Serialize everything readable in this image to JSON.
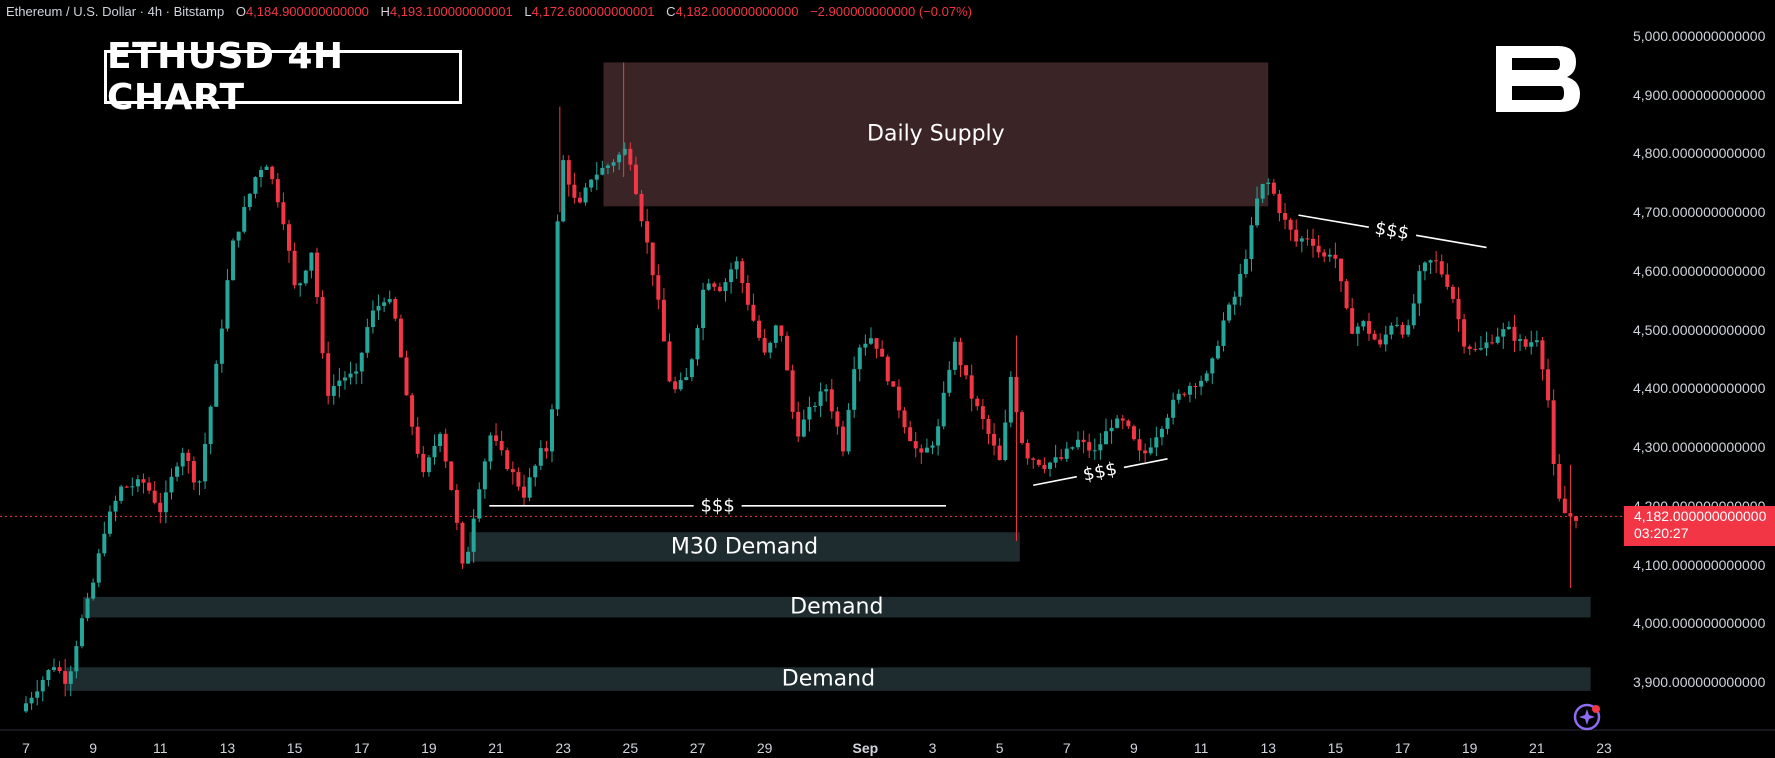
{
  "header": {
    "symbol": "Ethereum / U.S. Dollar · 4h · Bitstamp",
    "open_label": "O",
    "open": "4,184.900000000000",
    "high_label": "H",
    "high": "4,193.100000000001",
    "low_label": "L",
    "low": "4,172.600000000001",
    "close_label": "C",
    "close": "4,182.000000000000",
    "change": "−2.900000000000 (−0.07%)"
  },
  "title": "ETHUSD 4H CHART",
  "logo_icon": "b-logo-icon",
  "zones": [
    {
      "label": "Daily Supply"
    },
    {
      "label": "M30 Demand"
    },
    {
      "label": "Demand"
    },
    {
      "label": "Demand"
    }
  ],
  "liquidity": [
    {
      "label": "$$$"
    },
    {
      "label": "$$$"
    },
    {
      "label": "$$$"
    }
  ],
  "price_tag": {
    "price": "4,182.000000000000",
    "countdown": "03:20:27"
  },
  "colors": {
    "up": "#26a69a",
    "down": "#f23645",
    "supply": "#3a2425",
    "demand": "#1f2c2f"
  },
  "chart_data": {
    "type": "candlestick",
    "title": "ETHUSD 4H CHART",
    "ylim": [
      3850,
      5050
    ],
    "y_ticks": [
      "5,000.000000000000",
      "4,900.000000000000",
      "4,800.000000000000",
      "4,700.000000000000",
      "4,600.000000000000",
      "4,500.000000000000",
      "4,400.000000000000",
      "4,300.000000000000",
      "4,200.000000000000",
      "4,100.000000000000",
      "4,000.000000000000",
      "3,900.000000000000"
    ],
    "y_tick_values": [
      5000,
      4900,
      4800,
      4700,
      4600,
      4500,
      4400,
      4300,
      4200,
      4100,
      4000,
      3900
    ],
    "x_ticks": [
      "7",
      "9",
      "11",
      "13",
      "15",
      "17",
      "19",
      "21",
      "23",
      "25",
      "27",
      "29",
      "Sep",
      "3",
      "5",
      "7",
      "9",
      "11",
      "13",
      "15",
      "17",
      "19",
      "21",
      "23"
    ],
    "x_tick_days": [
      7,
      9,
      11,
      13,
      15,
      17,
      19,
      21,
      23,
      25,
      27,
      29,
      32,
      34,
      36,
      38,
      40,
      42,
      44,
      46,
      48,
      50,
      52,
      54
    ],
    "x_range_days": [
      7,
      54
    ],
    "zones": [
      {
        "name": "Daily Supply",
        "x0": 24.2,
        "x1": 44.0,
        "y_low": 4710,
        "y_high": 4955
      },
      {
        "name": "M30 Demand",
        "x0": 20.2,
        "x1": 36.6,
        "y_low": 4105,
        "y_high": 4155
      },
      {
        "name": "Demand",
        "x0": 8.7,
        "x1": 53.6,
        "y_low": 4010,
        "y_high": 4045
      },
      {
        "name": "Demand",
        "x0": 8.2,
        "x1": 53.6,
        "y_low": 3885,
        "y_high": 3925
      }
    ],
    "liquidity_lines": [
      {
        "label": "$$$",
        "x0": 20.8,
        "y0": 4200,
        "x1": 34.4,
        "y1": 4200
      },
      {
        "label": "$$$",
        "x0": 37.0,
        "y0": 4235,
        "x1": 41.0,
        "y1": 4280
      },
      {
        "label": "$$$",
        "x0": 44.9,
        "y0": 4695,
        "x1": 50.5,
        "y1": 4640
      }
    ],
    "current_price": 4182,
    "anchors": [
      [
        7.0,
        3850
      ],
      [
        7.6,
        3900
      ],
      [
        8.0,
        3930
      ],
      [
        8.4,
        3900
      ],
      [
        8.8,
        4000
      ],
      [
        9.1,
        4050
      ],
      [
        9.5,
        4160
      ],
      [
        10.0,
        4230
      ],
      [
        10.7,
        4240
      ],
      [
        11.2,
        4190
      ],
      [
        11.8,
        4300
      ],
      [
        12.3,
        4230
      ],
      [
        12.8,
        4420
      ],
      [
        13.3,
        4640
      ],
      [
        14.0,
        4760
      ],
      [
        14.3,
        4790
      ],
      [
        14.8,
        4700
      ],
      [
        15.2,
        4560
      ],
      [
        15.7,
        4640
      ],
      [
        16.1,
        4390
      ],
      [
        16.6,
        4420
      ],
      [
        17.0,
        4420
      ],
      [
        17.4,
        4520
      ],
      [
        17.9,
        4560
      ],
      [
        18.2,
        4510
      ],
      [
        18.5,
        4380
      ],
      [
        19.0,
        4250
      ],
      [
        19.5,
        4330
      ],
      [
        19.9,
        4210
      ],
      [
        20.2,
        4080
      ],
      [
        20.6,
        4220
      ],
      [
        21.0,
        4320
      ],
      [
        21.5,
        4270
      ],
      [
        22.0,
        4220
      ],
      [
        22.5,
        4290
      ],
      [
        22.8,
        4300
      ],
      [
        22.95,
        4620
      ],
      [
        23.1,
        4800
      ],
      [
        23.6,
        4700
      ],
      [
        24.0,
        4760
      ],
      [
        24.5,
        4780
      ],
      [
        25.1,
        4810
      ],
      [
        25.4,
        4720
      ],
      [
        25.9,
        4580
      ],
      [
        26.4,
        4390
      ],
      [
        26.9,
        4420
      ],
      [
        27.4,
        4590
      ],
      [
        27.9,
        4570
      ],
      [
        28.3,
        4620
      ],
      [
        28.7,
        4540
      ],
      [
        29.2,
        4450
      ],
      [
        29.6,
        4520
      ],
      [
        30.1,
        4320
      ],
      [
        30.6,
        4370
      ],
      [
        31.0,
        4400
      ],
      [
        31.5,
        4300
      ],
      [
        31.9,
        4470
      ],
      [
        32.4,
        4490
      ],
      [
        32.9,
        4410
      ],
      [
        33.4,
        4330
      ],
      [
        33.8,
        4280
      ],
      [
        34.3,
        4320
      ],
      [
        34.8,
        4480
      ],
      [
        35.3,
        4390
      ],
      [
        35.7,
        4340
      ],
      [
        36.2,
        4270
      ],
      [
        36.5,
        4420
      ],
      [
        36.9,
        4290
      ],
      [
        37.5,
        4270
      ],
      [
        38.0,
        4280
      ],
      [
        38.5,
        4310
      ],
      [
        39.0,
        4290
      ],
      [
        39.5,
        4340
      ],
      [
        39.9,
        4340
      ],
      [
        40.4,
        4280
      ],
      [
        40.9,
        4330
      ],
      [
        41.4,
        4380
      ],
      [
        41.9,
        4410
      ],
      [
        42.4,
        4420
      ],
      [
        42.8,
        4510
      ],
      [
        43.2,
        4560
      ],
      [
        43.6,
        4650
      ],
      [
        43.9,
        4740
      ],
      [
        44.2,
        4750
      ],
      [
        44.6,
        4690
      ],
      [
        45.0,
        4650
      ],
      [
        45.4,
        4660
      ],
      [
        45.8,
        4620
      ],
      [
        46.1,
        4640
      ],
      [
        46.6,
        4500
      ],
      [
        47.0,
        4510
      ],
      [
        47.5,
        4470
      ],
      [
        47.9,
        4520
      ],
      [
        48.3,
        4490
      ],
      [
        48.7,
        4600
      ],
      [
        49.1,
        4620
      ],
      [
        49.6,
        4570
      ],
      [
        50.0,
        4480
      ],
      [
        50.4,
        4460
      ],
      [
        50.9,
        4490
      ],
      [
        51.3,
        4500
      ],
      [
        51.8,
        4470
      ],
      [
        52.2,
        4490
      ],
      [
        52.5,
        4380
      ],
      [
        52.7,
        4240
      ],
      [
        52.9,
        4190
      ],
      [
        53.2,
        4182
      ]
    ]
  }
}
